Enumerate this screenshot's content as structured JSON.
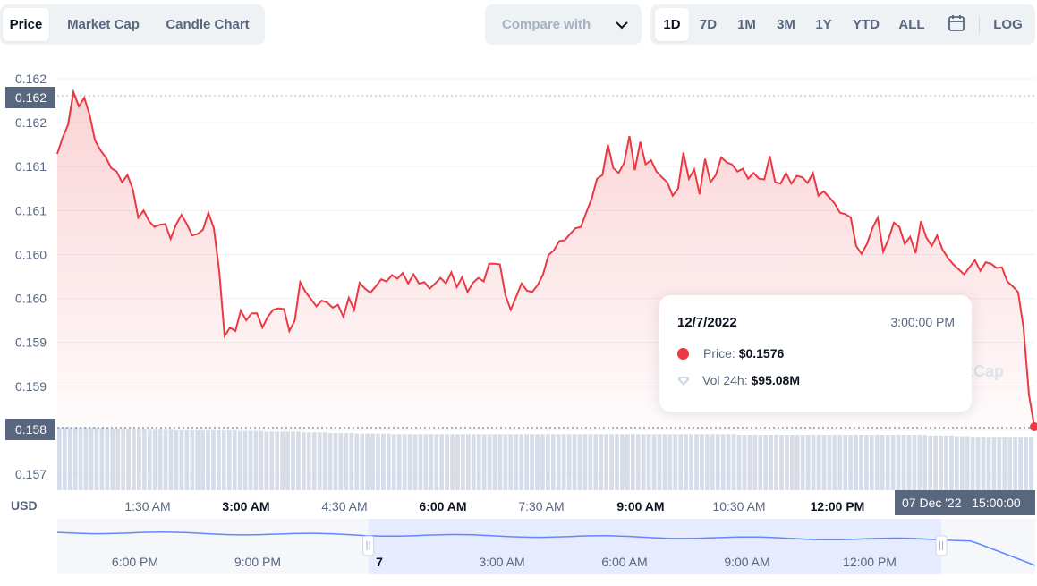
{
  "tabs": [
    {
      "label": "Price",
      "active": true
    },
    {
      "label": "Market Cap",
      "active": false
    },
    {
      "label": "Candle Chart",
      "active": false
    }
  ],
  "compare": {
    "label": "Compare with",
    "icon": "chevron-down-icon"
  },
  "ranges": [
    {
      "label": "1D",
      "active": true
    },
    {
      "label": "7D",
      "active": false
    },
    {
      "label": "1M",
      "active": false
    },
    {
      "label": "3M",
      "active": false
    },
    {
      "label": "1Y",
      "active": false
    },
    {
      "label": "YTD",
      "active": false
    },
    {
      "label": "ALL",
      "active": false
    }
  ],
  "calendar_icon": "calendar-icon",
  "log_label": "LOG",
  "tooltip": {
    "date": "12/7/2022",
    "time": "3:00:00 PM",
    "price_label": "Price:",
    "price_value": "$0.1576",
    "vol_label": "Vol 24h:",
    "vol_value": "$95.08M"
  },
  "watermark": "tCap",
  "colors": {
    "line_down": "#ea3943",
    "line_up": "#16c784",
    "volume": "#cfd6e4",
    "navigator": "#6188ff"
  },
  "chart_data": {
    "type": "line",
    "ylabel": "USD",
    "y_ticks": [
      "0.162",
      "0.162",
      "0.161",
      "0.161",
      "0.160",
      "0.160",
      "0.159",
      "0.159",
      "0.158",
      "0.157"
    ],
    "x_ticks": [
      {
        "label": "1:30 AM",
        "bold": false
      },
      {
        "label": "3:00 AM",
        "bold": true
      },
      {
        "label": "4:30 AM",
        "bold": false
      },
      {
        "label": "6:00 AM",
        "bold": true
      },
      {
        "label": "7:30 AM",
        "bold": false
      },
      {
        "label": "9:00 AM",
        "bold": true
      },
      {
        "label": "10:30 AM",
        "bold": false
      },
      {
        "label": "12:00 PM",
        "bold": true
      }
    ],
    "high_label": "0.162",
    "current_label": "0.158",
    "crosshair_label": "07 Dec '22   15:00:00",
    "price": [
      0.16145,
      0.16168,
      0.16186,
      0.16232,
      0.16212,
      0.16224,
      0.162,
      0.16164,
      0.1615,
      0.1614,
      0.16125,
      0.1612,
      0.16105,
      0.16115,
      0.16095,
      0.16055,
      0.16065,
      0.1605,
      0.16042,
      0.16045,
      0.16046,
      0.16025,
      0.16045,
      0.16059,
      0.16046,
      0.1603,
      0.16032,
      0.16038,
      0.16062,
      0.1604,
      0.1598,
      0.15888,
      0.159,
      0.15895,
      0.15924,
      0.1591,
      0.1592,
      0.1592,
      0.159,
      0.15915,
      0.15925,
      0.15927,
      0.15926,
      0.15895,
      0.1591,
      0.15964,
      0.1595,
      0.1594,
      0.1593,
      0.15938,
      0.15935,
      0.15928,
      0.15932,
      0.15915,
      0.15942,
      0.15925,
      0.15963,
      0.15955,
      0.15949,
      0.15958,
      0.15968,
      0.15965,
      0.15974,
      0.15969,
      0.15977,
      0.15962,
      0.15975,
      0.15962,
      0.15964,
      0.15955,
      0.15962,
      0.1597,
      0.15962,
      0.15978,
      0.15957,
      0.15971,
      0.1595,
      0.15963,
      0.1597,
      0.15965,
      0.1599,
      0.1599,
      0.15989,
      0.15946,
      0.15925,
      0.15943,
      0.15962,
      0.15952,
      0.1595,
      0.1596,
      0.15975,
      0.16002,
      0.16009,
      0.16022,
      0.16023,
      0.16032,
      0.1604,
      0.16042,
      0.16062,
      0.16082,
      0.1611,
      0.16115,
      0.16158,
      0.16125,
      0.16118,
      0.16132,
      0.1617,
      0.16122,
      0.16162,
      0.1613,
      0.16136,
      0.1612,
      0.16112,
      0.16105,
      0.16086,
      0.16096,
      0.16147,
      0.1611,
      0.16123,
      0.16088,
      0.16138,
      0.16105,
      0.16115,
      0.1614,
      0.16133,
      0.1613,
      0.1612,
      0.16124,
      0.1611,
      0.16118,
      0.1611,
      0.16109,
      0.16142,
      0.16105,
      0.16103,
      0.16118,
      0.16103,
      0.16114,
      0.16112,
      0.16104,
      0.16118,
      0.16086,
      0.16092,
      0.16084,
      0.16075,
      0.16062,
      0.1606,
      0.16055,
      0.16015,
      0.16004,
      0.16018,
      0.1604,
      0.16055,
      0.16007,
      0.16025,
      0.16048,
      0.16042,
      0.16018,
      0.16028,
      0.16005,
      0.1605,
      0.16027,
      0.16015,
      0.1603,
      0.1601,
      0.15998,
      0.15989,
      0.15982,
      0.15975,
      0.15985,
      0.15995,
      0.1598,
      0.15992,
      0.1599,
      0.15984,
      0.15985,
      0.15965,
      0.15958,
      0.1595,
      0.159,
      0.15805,
      0.1576
    ],
    "volume_level": [
      0.98,
      0.98,
      0.98,
      0.98,
      0.98,
      0.98,
      0.98,
      0.98,
      0.97,
      0.97,
      0.96,
      0.96,
      0.96,
      0.96,
      0.95,
      0.95,
      0.95,
      0.94,
      0.94,
      0.94,
      0.94,
      0.94,
      0.93,
      0.93,
      0.93,
      0.93,
      0.93,
      0.93,
      0.93,
      0.93,
      0.93,
      0.93,
      0.93,
      0.93,
      0.92,
      0.92,
      0.92,
      0.92,
      0.92,
      0.91,
      0.91,
      0.91,
      0.91,
      0.91,
      0.91,
      0.91,
      0.9,
      0.9,
      0.9,
      0.9,
      0.9,
      0.89,
      0.89,
      0.89,
      0.89,
      0.89,
      0.88,
      0.88,
      0.88,
      0.88,
      0.88,
      0.88,
      0.88,
      0.87,
      0.87,
      0.87,
      0.87,
      0.87,
      0.87,
      0.87,
      0.87,
      0.87,
      0.87,
      0.87,
      0.87,
      0.87,
      0.87,
      0.87,
      0.87,
      0.87,
      0.87,
      0.87,
      0.87,
      0.87,
      0.87,
      0.87,
      0.87,
      0.87,
      0.87,
      0.87,
      0.87,
      0.87,
      0.87,
      0.87,
      0.87,
      0.87,
      0.87,
      0.87,
      0.87,
      0.87,
      0.87,
      0.87,
      0.87,
      0.87,
      0.87,
      0.87,
      0.87,
      0.87,
      0.87,
      0.87,
      0.87,
      0.87,
      0.87,
      0.87,
      0.87,
      0.87,
      0.87,
      0.87,
      0.87,
      0.87,
      0.87,
      0.87,
      0.87,
      0.87,
      0.87,
      0.87,
      0.87,
      0.87,
      0.86,
      0.86,
      0.86,
      0.86,
      0.86,
      0.86,
      0.86,
      0.86,
      0.86,
      0.86,
      0.86,
      0.86,
      0.86,
      0.86,
      0.86,
      0.86,
      0.86,
      0.86,
      0.86,
      0.86,
      0.86,
      0.86,
      0.86,
      0.86,
      0.86,
      0.86,
      0.86,
      0.86,
      0.86,
      0.86,
      0.86,
      0.86,
      0.86,
      0.86,
      0.86,
      0.86,
      0.85,
      0.85,
      0.85,
      0.85,
      0.85,
      0.84,
      0.84,
      0.84,
      0.83,
      0.83,
      0.83,
      0.82,
      0.82,
      0.82,
      0.82,
      0.82,
      0.82,
      0.82,
      0.83,
      0.83
    ],
    "navigator": {
      "x_ticks": [
        "6:00 PM",
        "9:00 PM",
        "7",
        "3:00 AM",
        "6:00 AM",
        "9:00 AM",
        "12:00 PM"
      ],
      "selected_range": [
        0.318,
        0.904
      ]
    }
  }
}
